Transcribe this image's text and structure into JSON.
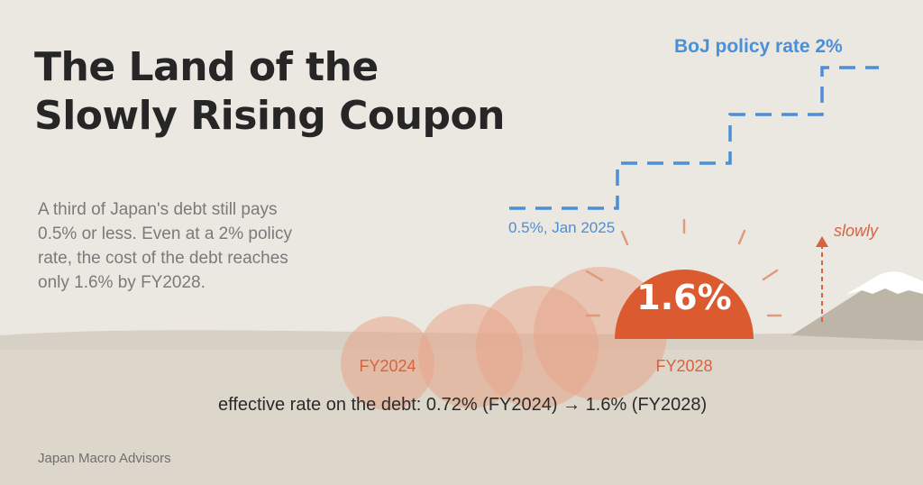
{
  "title": {
    "line1": "The Land of the",
    "line2": "Slowly Rising Coupon"
  },
  "subtitle_lines": [
    "A third of Japan's debt still pays",
    "0.5% or less. Even at a 2% policy",
    "rate, the cost of the debt reaches",
    "only 1.6% by FY2028."
  ],
  "policy_rate": {
    "end_label": "BoJ policy rate 2%",
    "start_label": "0.5%, Jan 2025",
    "start_value_pct": 0.5,
    "end_value_pct": 2.0
  },
  "sun": {
    "label": "1.6%",
    "value_pct": 1.6
  },
  "slowly_label": "slowly",
  "year_labels": {
    "start": "FY2024",
    "end": "FY2028"
  },
  "effective_rate_text": "effective rate on the debt:  0.72% (FY2024)  →  1.6% (FY2028)",
  "credit": "Japan Macro Advisors",
  "colors": {
    "background": "#ebe8e2",
    "ground": "#d9d3c8",
    "hill": "#c9c1b3",
    "policy_blue": "#4a8fd8",
    "sun_orange": "#dc5a30",
    "label_orange": "#d9623e",
    "ghost_sun": "#e8a58a"
  }
}
